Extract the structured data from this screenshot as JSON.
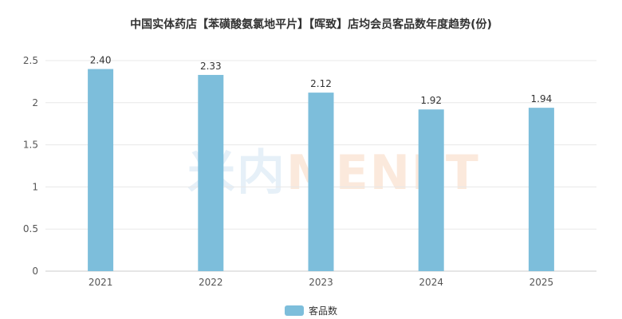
{
  "chart_data": {
    "type": "bar",
    "title": "中国实体药店【苯磺酸氨氯地平片】【晖致】店均会员客品数年度趋势(份)",
    "categories": [
      "2021",
      "2022",
      "2023",
      "2024",
      "2025"
    ],
    "series": [
      {
        "name": "客品数",
        "values": [
          2.4,
          2.33,
          2.12,
          1.92,
          1.94
        ]
      }
    ],
    "data_labels": [
      "2.40",
      "2.33",
      "2.12",
      "1.92",
      "1.94"
    ],
    "yticks": [
      "0",
      "0.5",
      "1",
      "1.5",
      "2",
      "2.5"
    ],
    "ylim": [
      0,
      2.5
    ],
    "xlabel": "",
    "ylabel": "",
    "grid": true,
    "legend_position": "bottom-center",
    "bar_color": "#7dbedb"
  },
  "watermark": {
    "cn": "米内",
    "en": "MENET"
  }
}
